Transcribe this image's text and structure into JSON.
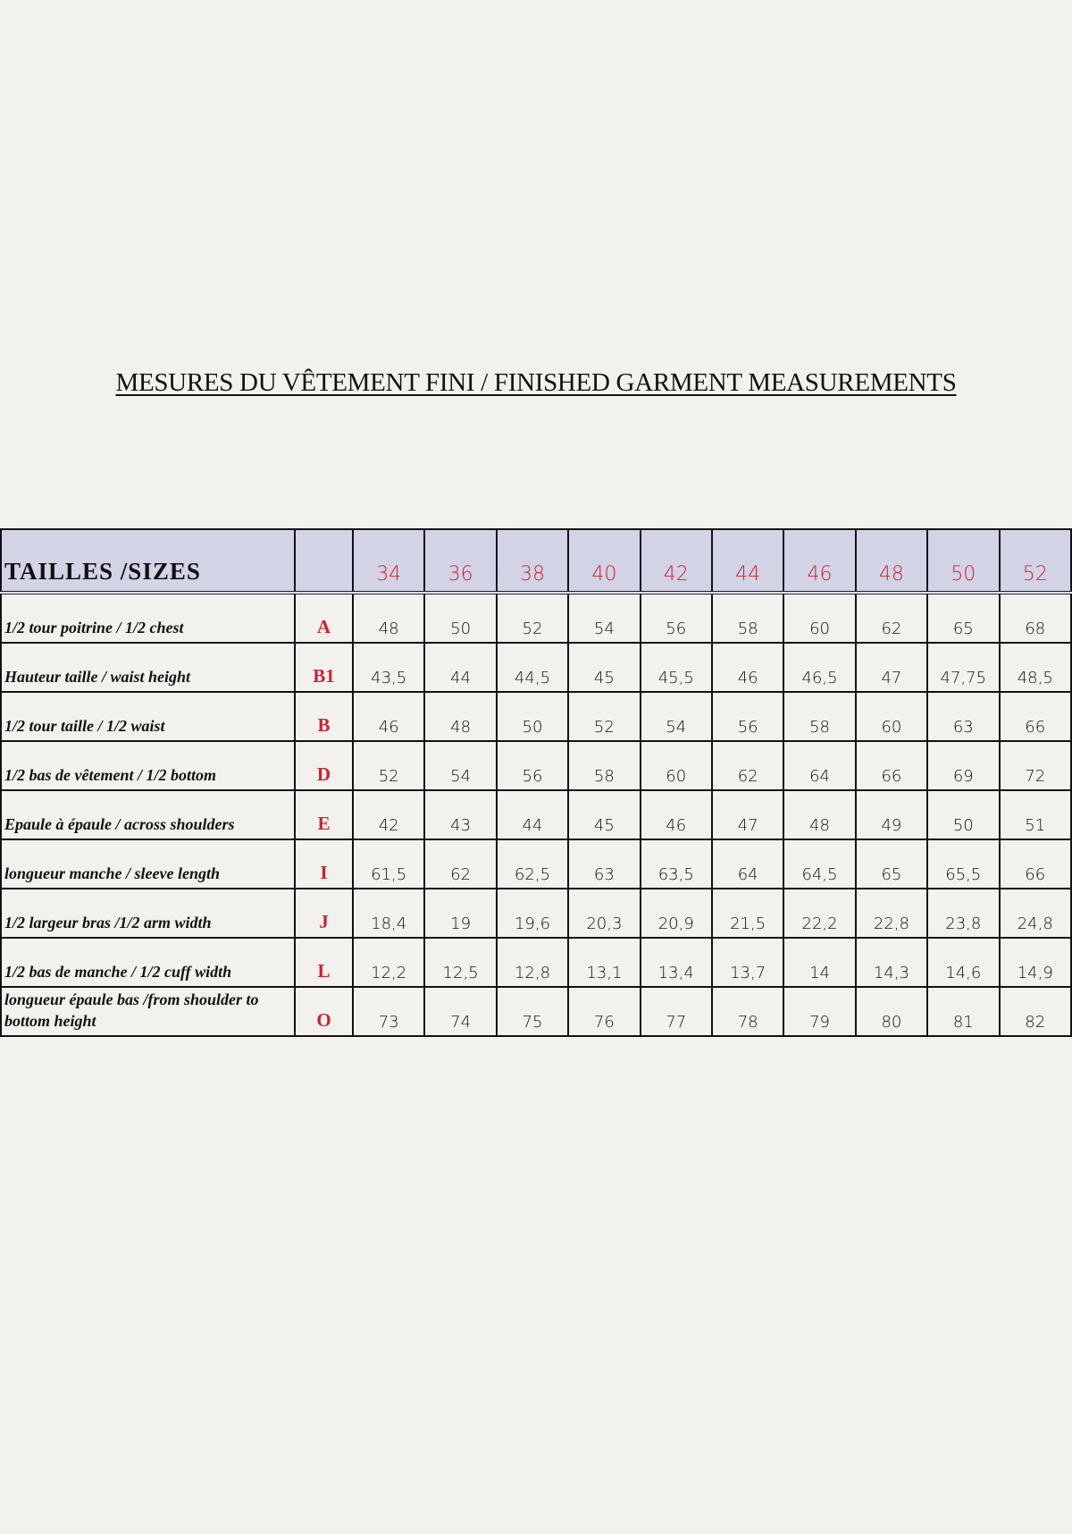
{
  "title": "MESURES DU VÊTEMENT FINI / FINISHED GARMENT MEASUREMENTS",
  "table": {
    "header_label": "TAILLES /SIZES",
    "sizes": [
      "34",
      "36",
      "38",
      "40",
      "42",
      "44",
      "46",
      "48",
      "50",
      "52"
    ],
    "rows": [
      {
        "label": "1/2 tour poitrine / 1/2 chest",
        "letter": "A",
        "values": [
          "48",
          "50",
          "52",
          "54",
          "56",
          "58",
          "60",
          "62",
          "65",
          "68"
        ]
      },
      {
        "label": "Hauteur taille / waist height",
        "letter": "B1",
        "values": [
          "43,5",
          "44",
          "44,5",
          "45",
          "45,5",
          "46",
          "46,5",
          "47",
          "47,75",
          "48,5"
        ]
      },
      {
        "label": "1/2 tour taille  / 1/2 waist",
        "letter": "B",
        "values": [
          "46",
          "48",
          "50",
          "52",
          "54",
          "56",
          "58",
          "60",
          "63",
          "66"
        ]
      },
      {
        "label": "1/2 bas de vêtement / 1/2 bottom",
        "letter": "D",
        "values": [
          "52",
          "54",
          "56",
          "58",
          "60",
          "62",
          "64",
          "66",
          "69",
          "72"
        ]
      },
      {
        "label": "Epaule à épaule  / across shoulders",
        "letter": "E",
        "values": [
          "42",
          "43",
          "44",
          "45",
          "46",
          "47",
          "48",
          "49",
          "50",
          "51"
        ]
      },
      {
        "label": "longueur manche  / sleeve length",
        "letter": "I",
        "values": [
          "61,5",
          "62",
          "62,5",
          "63",
          "63,5",
          "64",
          "64,5",
          "65",
          "65,5",
          "66"
        ]
      },
      {
        "label": "1/2 largeur bras /1/2  arm width",
        "letter": "J",
        "values": [
          "18,4",
          "19",
          "19,6",
          "20,3",
          "20,9",
          "21,5",
          "22,2",
          "22,8",
          "23,8",
          "24,8"
        ]
      },
      {
        "label": "1/2 bas de manche  / 1/2  cuff width",
        "letter": "L",
        "values": [
          "12,2",
          "12,5",
          "12,8",
          "13,1",
          "13,4",
          "13,7",
          "14",
          "14,3",
          "14,6",
          "14,9"
        ]
      },
      {
        "label": "longueur épaule bas /from shoulder to bottom height",
        "letter": "O",
        "values": [
          "73",
          "74",
          "75",
          "76",
          "77",
          "78",
          "79",
          "80",
          "81",
          "82"
        ]
      }
    ]
  },
  "colors": {
    "accent_red": "#d0202e",
    "header_bg": "#d3d3e6",
    "page_bg": "#f2f1ed"
  }
}
